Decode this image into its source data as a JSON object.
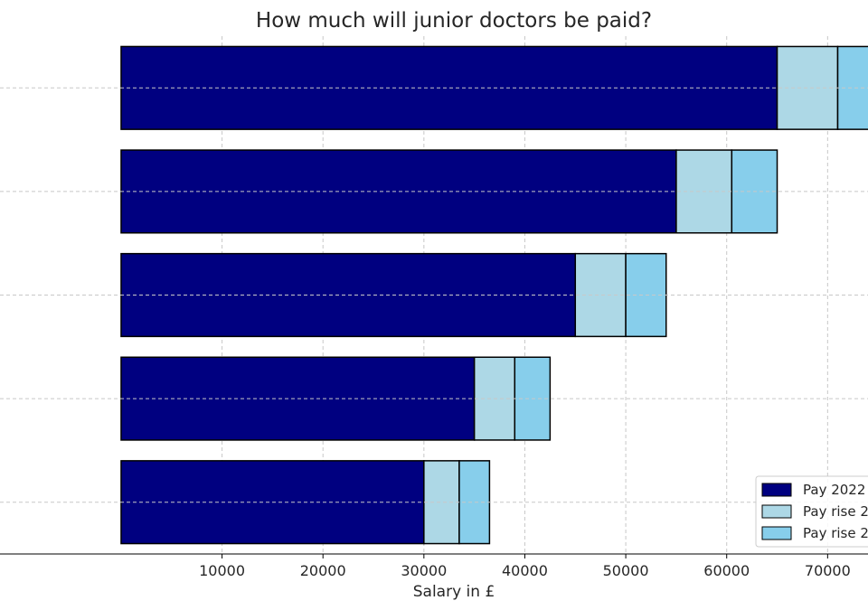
{
  "chart_data": {
    "type": "bar",
    "orientation": "horizontal",
    "stacked": true,
    "title": "How much will junior doctors be paid?",
    "xlabel": "Salary in £",
    "ylabel": "",
    "xlim": [
      -12000,
      74000
    ],
    "xticks": [
      10000,
      20000,
      30000,
      40000,
      50000,
      60000,
      70000
    ],
    "grid": true,
    "legend_position": "lower-right",
    "series": [
      {
        "name": "Pay 2022",
        "color": "#000080",
        "values": [
          65000,
          55000,
          45000,
          35000,
          30000
        ]
      },
      {
        "name": "Pay rise 2",
        "color": "#add8e6",
        "values": [
          6000,
          5500,
          5000,
          4000,
          3500
        ]
      },
      {
        "name": "Pay rise 2",
        "color": "#87ceeb",
        "values": [
          4500,
          4500,
          4000,
          3500,
          3000
        ]
      }
    ]
  }
}
